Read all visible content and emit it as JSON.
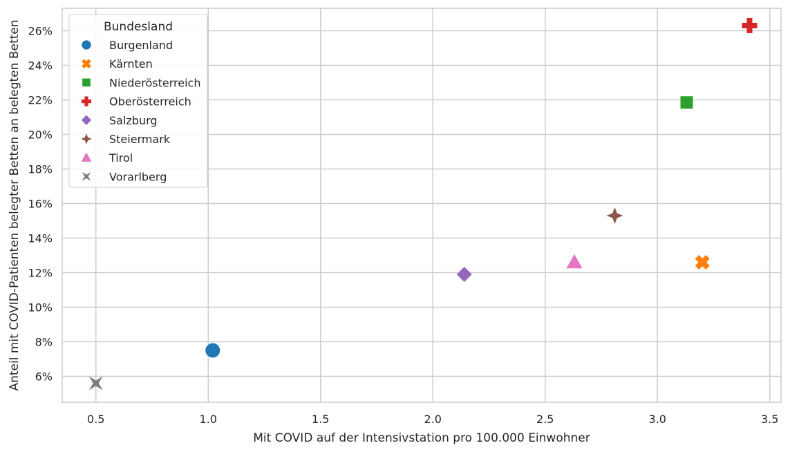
{
  "chart_data": {
    "type": "scatter",
    "xlabel": "Mit COVID auf der Intensivstation pro 100.000 Einwohner",
    "ylabel": "Anteil mit COVID-Patienten belegter Betten an belegten Betten",
    "xlim": [
      0.35,
      3.55
    ],
    "ylim": [
      4.5,
      27.3
    ],
    "x_ticks": [
      0.5,
      1.0,
      1.5,
      2.0,
      2.5,
      3.0,
      3.5
    ],
    "x_tick_labels": [
      "0.5",
      "1.0",
      "1.5",
      "2.0",
      "2.5",
      "3.0",
      "3.5"
    ],
    "y_ticks": [
      6,
      8,
      10,
      12,
      14,
      16,
      18,
      20,
      22,
      24,
      26
    ],
    "y_tick_labels": [
      "6%",
      "8%",
      "10%",
      "12%",
      "14%",
      "16%",
      "18%",
      "20%",
      "22%",
      "24%",
      "26%"
    ],
    "y_unit": "%",
    "grid": true,
    "legend": {
      "title": "Bundesland",
      "position": "top-left"
    },
    "series": [
      {
        "name": "Burgenland",
        "marker": "circle",
        "color": "#1f77b4",
        "x": [
          1.02
        ],
        "y": [
          7.5
        ]
      },
      {
        "name": "Kärnten",
        "marker": "x",
        "color": "#ff7f0e",
        "x": [
          3.2
        ],
        "y": [
          12.6
        ]
      },
      {
        "name": "Niederösterreich",
        "marker": "square",
        "color": "#2ca02c",
        "x": [
          3.13
        ],
        "y": [
          21.85
        ]
      },
      {
        "name": "Oberösterreich",
        "marker": "plus",
        "color": "#d62728",
        "x": [
          3.41
        ],
        "y": [
          26.3
        ]
      },
      {
        "name": "Salzburg",
        "marker": "diamond",
        "color": "#9467bd",
        "x": [
          2.14
        ],
        "y": [
          11.9
        ]
      },
      {
        "name": "Steiermark",
        "marker": "star4",
        "color": "#8c564b",
        "x": [
          2.81
        ],
        "y": [
          15.3
        ]
      },
      {
        "name": "Tirol",
        "marker": "triangle",
        "color": "#e377c2",
        "x": [
          2.63
        ],
        "y": [
          12.6
        ]
      },
      {
        "name": "Vorarlberg",
        "marker": "star4-inset",
        "color": "#7f7f7f",
        "x": [
          0.5
        ],
        "y": [
          5.6
        ]
      }
    ]
  }
}
